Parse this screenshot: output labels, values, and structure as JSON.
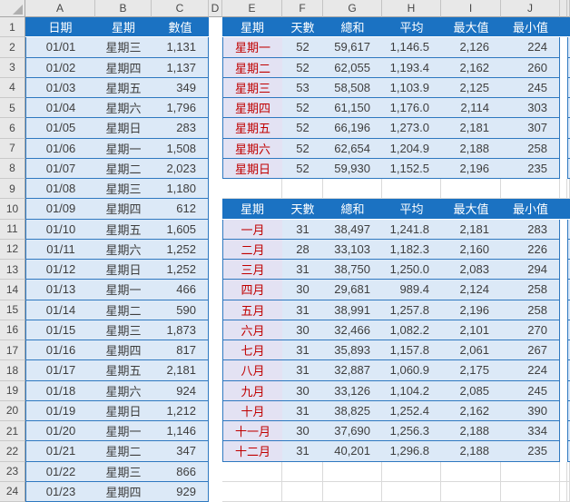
{
  "app": {
    "title": "spreadsheet"
  },
  "column_headers": [
    "A",
    "B",
    "C",
    "D",
    "E",
    "F",
    "G",
    "H",
    "I",
    "J",
    "",
    ""
  ],
  "row_numbers": [
    1,
    2,
    3,
    4,
    5,
    6,
    7,
    8,
    9,
    10,
    11,
    12,
    13,
    14,
    15,
    16,
    17,
    18,
    19,
    20,
    21,
    22,
    23,
    24
  ],
  "left_table": {
    "headers": [
      "日期",
      "星期",
      "數值"
    ],
    "rows": [
      {
        "date": "01/01",
        "weekday": "星期三",
        "value": "1,131"
      },
      {
        "date": "01/02",
        "weekday": "星期四",
        "value": "1,137"
      },
      {
        "date": "01/03",
        "weekday": "星期五",
        "value": "349"
      },
      {
        "date": "01/04",
        "weekday": "星期六",
        "value": "1,796"
      },
      {
        "date": "01/05",
        "weekday": "星期日",
        "value": "283"
      },
      {
        "date": "01/06",
        "weekday": "星期一",
        "value": "1,508"
      },
      {
        "date": "01/07",
        "weekday": "星期二",
        "value": "2,023"
      },
      {
        "date": "01/08",
        "weekday": "星期三",
        "value": "1,180"
      },
      {
        "date": "01/09",
        "weekday": "星期四",
        "value": "612"
      },
      {
        "date": "01/10",
        "weekday": "星期五",
        "value": "1,605"
      },
      {
        "date": "01/11",
        "weekday": "星期六",
        "value": "1,252"
      },
      {
        "date": "01/12",
        "weekday": "星期日",
        "value": "1,252"
      },
      {
        "date": "01/13",
        "weekday": "星期一",
        "value": "466"
      },
      {
        "date": "01/14",
        "weekday": "星期二",
        "value": "590"
      },
      {
        "date": "01/15",
        "weekday": "星期三",
        "value": "1,873"
      },
      {
        "date": "01/16",
        "weekday": "星期四",
        "value": "817"
      },
      {
        "date": "01/17",
        "weekday": "星期五",
        "value": "2,181"
      },
      {
        "date": "01/18",
        "weekday": "星期六",
        "value": "924"
      },
      {
        "date": "01/19",
        "weekday": "星期日",
        "value": "1,212"
      },
      {
        "date": "01/20",
        "weekday": "星期一",
        "value": "1,146"
      },
      {
        "date": "01/21",
        "weekday": "星期二",
        "value": "347"
      },
      {
        "date": "01/22",
        "weekday": "星期三",
        "value": "866"
      },
      {
        "date": "01/23",
        "weekday": "星期四",
        "value": "929"
      }
    ]
  },
  "weekday_summary": {
    "headers": [
      "星期",
      "天數",
      "總和",
      "平均",
      "最大值",
      "最小值"
    ],
    "rows": [
      {
        "label": "星期一",
        "days": "52",
        "sum": "59,617",
        "avg": "1,146.5",
        "max": "2,126",
        "min": "224"
      },
      {
        "label": "星期二",
        "days": "52",
        "sum": "62,055",
        "avg": "1,193.4",
        "max": "2,162",
        "min": "260"
      },
      {
        "label": "星期三",
        "days": "53",
        "sum": "58,508",
        "avg": "1,103.9",
        "max": "2,125",
        "min": "245"
      },
      {
        "label": "星期四",
        "days": "52",
        "sum": "61,150",
        "avg": "1,176.0",
        "max": "2,114",
        "min": "303"
      },
      {
        "label": "星期五",
        "days": "52",
        "sum": "66,196",
        "avg": "1,273.0",
        "max": "2,181",
        "min": "307"
      },
      {
        "label": "星期六",
        "days": "52",
        "sum": "62,654",
        "avg": "1,204.9",
        "max": "2,188",
        "min": "258"
      },
      {
        "label": "星期日",
        "days": "52",
        "sum": "59,930",
        "avg": "1,152.5",
        "max": "2,196",
        "min": "235"
      }
    ]
  },
  "month_summary": {
    "headers": [
      "星期",
      "天數",
      "總和",
      "平均",
      "最大值",
      "最小值"
    ],
    "rows": [
      {
        "label": "一月",
        "days": "31",
        "sum": "38,497",
        "avg": "1,241.8",
        "max": "2,181",
        "min": "283"
      },
      {
        "label": "二月",
        "days": "28",
        "sum": "33,103",
        "avg": "1,182.3",
        "max": "2,160",
        "min": "226"
      },
      {
        "label": "三月",
        "days": "31",
        "sum": "38,750",
        "avg": "1,250.0",
        "max": "2,083",
        "min": "294"
      },
      {
        "label": "四月",
        "days": "30",
        "sum": "29,681",
        "avg": "989.4",
        "max": "2,124",
        "min": "258"
      },
      {
        "label": "五月",
        "days": "31",
        "sum": "38,991",
        "avg": "1,257.8",
        "max": "2,196",
        "min": "258"
      },
      {
        "label": "六月",
        "days": "30",
        "sum": "32,466",
        "avg": "1,082.2",
        "max": "2,101",
        "min": "270"
      },
      {
        "label": "七月",
        "days": "31",
        "sum": "35,893",
        "avg": "1,157.8",
        "max": "2,061",
        "min": "267"
      },
      {
        "label": "八月",
        "days": "31",
        "sum": "32,887",
        "avg": "1,060.9",
        "max": "2,175",
        "min": "224"
      },
      {
        "label": "九月",
        "days": "30",
        "sum": "33,126",
        "avg": "1,104.2",
        "max": "2,085",
        "min": "245"
      },
      {
        "label": "十月",
        "days": "31",
        "sum": "38,825",
        "avg": "1,252.4",
        "max": "2,162",
        "min": "390"
      },
      {
        "label": "十一月",
        "days": "30",
        "sum": "37,690",
        "avg": "1,256.3",
        "max": "2,188",
        "min": "334"
      },
      {
        "label": "十二月",
        "days": "31",
        "sum": "40,201",
        "avg": "1,296.8",
        "max": "2,188",
        "min": "235"
      }
    ]
  },
  "colors": {
    "header_blue": "#1B72C2",
    "cell_blue": "#DCE9F7",
    "cell_lavender": "#E3E2F3",
    "red_text": "#C00000",
    "border_blue": "#2E78C0",
    "gridline_gray": "#D9D9D9"
  }
}
